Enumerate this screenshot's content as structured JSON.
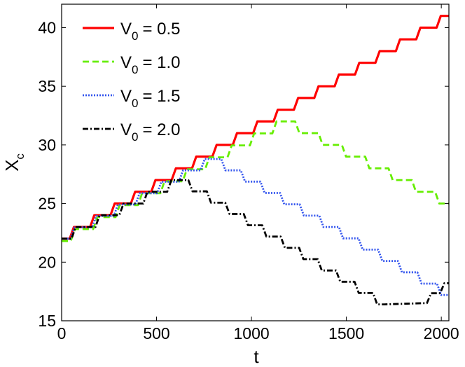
{
  "chart_data": {
    "type": "line",
    "title": "",
    "xlabel": "t",
    "ylabel": "X",
    "ylabel_subscript": "c",
    "xlim": [
      0,
      2040
    ],
    "ylim": [
      15,
      42
    ],
    "x_ticks": [
      0,
      500,
      1000,
      1500,
      2000
    ],
    "y_ticks": [
      15,
      20,
      25,
      30,
      35,
      40
    ],
    "grid": false,
    "legend_position": "top-left",
    "series": [
      {
        "name": "V_0 = 0.5",
        "label_main": "V",
        "label_sub": "0",
        "label_value": "= 0.5",
        "color": "#ff0000",
        "dash": "",
        "points": [
          [
            0,
            22
          ],
          [
            2040,
            41
          ]
        ]
      },
      {
        "name": "V_0 = 1.0",
        "label_main": "V",
        "label_sub": "0",
        "label_value": "= 1.0",
        "color": "#66ee00",
        "dash": "9,5",
        "points": [
          [
            0,
            21.8
          ],
          [
            1180,
            32
          ],
          [
            2040,
            25
          ]
        ]
      },
      {
        "name": "V_0 = 1.5",
        "label_main": "V",
        "label_sub": "0",
        "label_value": "= 1.5",
        "color": "#3355ee",
        "dash": "2,2",
        "points": [
          [
            0,
            22
          ],
          [
            800,
            28.8
          ],
          [
            2040,
            17.2
          ]
        ]
      },
      {
        "name": "V_0 = 2.0",
        "label_main": "V",
        "label_sub": "0",
        "label_value": "= 2.0",
        "color": "#000000",
        "dash": "8,3,2,3",
        "points": [
          [
            0,
            22
          ],
          [
            630,
            27
          ],
          [
            1700,
            16.4
          ],
          [
            1900,
            16.5
          ],
          [
            2040,
            18.2
          ]
        ]
      }
    ]
  }
}
